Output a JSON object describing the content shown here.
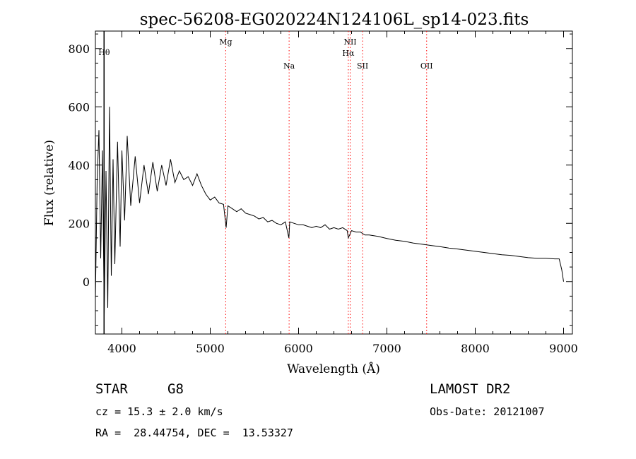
{
  "chart_data": {
    "type": "line",
    "title": "spec-56208-EG020224N124106L_sp14-023.fits",
    "xlabel": "Wavelength (Å)",
    "ylabel": "Flux (relative)",
    "xlim": [
      3700,
      9100
    ],
    "ylim": [
      -180,
      860
    ],
    "xticks": [
      "4000",
      "5000",
      "6000",
      "7000",
      "8000",
      "9000"
    ],
    "yticks": [
      "0",
      "200",
      "400",
      "600",
      "800"
    ],
    "grid": false,
    "line_color": "#000000",
    "marker_color": "#ff0000",
    "line_markers": [
      {
        "label": "Hθ",
        "x": 3798,
        "row": "top"
      },
      {
        "label": "Mg",
        "x": 5175,
        "row": "upper"
      },
      {
        "label": "Na",
        "x": 5893,
        "row": "lower"
      },
      {
        "label": "NII",
        "x": 6584,
        "row": "upper"
      },
      {
        "label": "Hα",
        "x": 6563,
        "row": "middle"
      },
      {
        "label": "SII",
        "x": 6725,
        "row": "lower"
      },
      {
        "label": "OII",
        "x": 7450,
        "row": "lower"
      }
    ],
    "series": [
      {
        "x": [
          3700,
          3720,
          3740,
          3760,
          3780,
          3800,
          3820,
          3840,
          3860,
          3880,
          3900,
          3920,
          3950,
          3980,
          4000,
          4030,
          4060,
          4100,
          4150,
          4200,
          4250,
          4300,
          4350,
          4400,
          4450,
          4500,
          4550,
          4600,
          4650,
          4700,
          4750,
          4800,
          4850,
          4900,
          4950,
          5000,
          5050,
          5100,
          5150,
          5180,
          5200,
          5250,
          5300,
          5350,
          5400,
          5450,
          5500,
          5550,
          5600,
          5650,
          5700,
          5750,
          5800,
          5850,
          5890,
          5900,
          5950,
          6000,
          6050,
          6100,
          6150,
          6200,
          6250,
          6300,
          6350,
          6400,
          6450,
          6500,
          6550,
          6563,
          6600,
          6650,
          6700,
          6750,
          6800,
          6900,
          7000,
          7100,
          7200,
          7300,
          7400,
          7500,
          7600,
          7700,
          7800,
          7900,
          8000,
          8100,
          8200,
          8300,
          8400,
          8500,
          8600,
          8700,
          8800,
          8900,
          8950,
          8980,
          9000
        ],
        "y": [
          -60,
          350,
          520,
          80,
          450,
          -120,
          380,
          -90,
          600,
          20,
          420,
          60,
          480,
          120,
          450,
          210,
          500,
          260,
          430,
          270,
          400,
          300,
          410,
          310,
          400,
          330,
          420,
          340,
          380,
          350,
          360,
          330,
          370,
          330,
          300,
          280,
          290,
          270,
          265,
          185,
          260,
          250,
          240,
          250,
          235,
          230,
          225,
          215,
          220,
          205,
          210,
          200,
          195,
          205,
          150,
          205,
          200,
          195,
          195,
          190,
          185,
          190,
          185,
          195,
          180,
          185,
          180,
          185,
          175,
          150,
          175,
          170,
          170,
          160,
          160,
          155,
          148,
          142,
          138,
          132,
          128,
          124,
          120,
          115,
          112,
          108,
          104,
          100,
          96,
          92,
          90,
          86,
          82,
          80,
          80,
          78,
          78,
          40,
          0
        ]
      }
    ]
  },
  "info": {
    "object_class": "STAR",
    "subclass": "G8",
    "survey": "LAMOST DR2",
    "redshift": "cz = 15.3 ± 2.0 km/s",
    "obs_date": "Obs-Date: 20121007",
    "coords": "RA =  28.44754, DEC =  13.53327"
  }
}
